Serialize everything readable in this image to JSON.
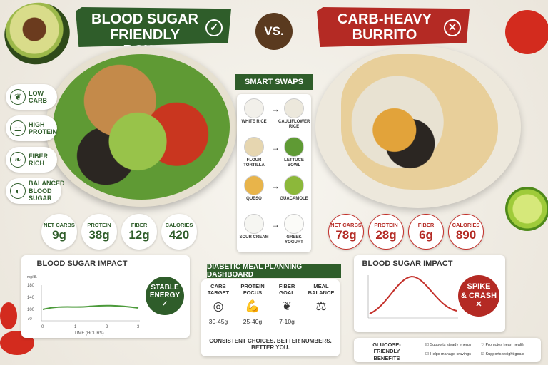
{
  "left_banner": {
    "title_line1": "BLOOD SUGAR",
    "title_line2": "FRIENDLY BOWL",
    "icon": "check-circle-icon"
  },
  "vs_label": "VS.",
  "right_banner": {
    "title_line1": "CARB-HEAVY",
    "title_line2": "BURRITO",
    "icon": "x-circle-icon"
  },
  "attributes": [
    {
      "line1": "LOW",
      "line2": "CARB",
      "icon": "leaf-icon"
    },
    {
      "line1": "HIGH",
      "line2": "PROTEIN",
      "icon": "dumbbell-icon"
    },
    {
      "line1": "FIBER",
      "line2": "RICH",
      "icon": "fiber-icon"
    },
    {
      "line1": "BALANCED",
      "line2": "BLOOD SUGAR",
      "icon": "drop-icon"
    }
  ],
  "bowl_stats": [
    {
      "label": "NET CARBS",
      "value": "9g"
    },
    {
      "label": "PROTEIN",
      "value": "38g"
    },
    {
      "label": "FIBER",
      "value": "12g"
    },
    {
      "label": "CALORIES",
      "value": "420"
    }
  ],
  "burrito_stats": [
    {
      "label": "NET CARBS",
      "value": "78g"
    },
    {
      "label": "PROTEIN",
      "value": "28g"
    },
    {
      "label": "FIBER",
      "value": "6g"
    },
    {
      "label": "CALORIES",
      "value": "890"
    }
  ],
  "smart_swaps": {
    "title": "SMART SWAPS",
    "rows": [
      {
        "from_line1": "WHITE RICE",
        "from_line2": "",
        "to_line1": "CAULIFLOWER",
        "to_line2": "RICE"
      },
      {
        "from_line1": "FLOUR TORTILLA",
        "from_line2": "",
        "to_line1": "LETTUCE",
        "to_line2": "BOWL"
      },
      {
        "from_line1": "QUESO",
        "from_line2": "",
        "to_line1": "GUACAMOLE",
        "to_line2": ""
      },
      {
        "from_line1": "SOUR CREAM",
        "from_line2": "",
        "to_line1": "GREEK",
        "to_line2": "YOGURT"
      }
    ],
    "arrow": "→"
  },
  "left_chart": {
    "title": "BLOOD SUGAR IMPACT",
    "y_unit": "mg/dL",
    "y_ticks": [
      "180",
      "140",
      "100",
      "70"
    ],
    "x_ticks": [
      "0",
      "1",
      "2",
      "3"
    ],
    "x_label": "TIME (HOURS)",
    "badge_line1": "STABLE",
    "badge_line2": "ENERGY",
    "badge_icon": "check-icon",
    "color": "#4b9a3a"
  },
  "right_chart": {
    "title": "BLOOD SUGAR IMPACT",
    "badge_line1": "SPIKE",
    "badge_line2": "& CRASH",
    "badge_icon": "x-icon",
    "color": "#c4302a"
  },
  "dashboard": {
    "title": "DIABETIC MEAL PLANNING DASHBOARD",
    "columns": [
      {
        "line1": "CARB",
        "line2": "TARGET",
        "icon": "target-icon",
        "value": "30-45g"
      },
      {
        "line1": "PROTEIN",
        "line2": "FOCUS",
        "icon": "muscle-icon",
        "value": "25-40g"
      },
      {
        "line1": "FIBER",
        "line2": "GOAL",
        "icon": "sprout-icon",
        "value": "7-10g"
      },
      {
        "line1": "MEAL",
        "line2": "BALANCE",
        "icon": "scale-icon",
        "value": ""
      }
    ],
    "footer": "CONSISTENT CHOICES. BETTER NUMBERS. BETTER YOU."
  },
  "benefits": {
    "title_line1": "GLUCOSE-FRIENDLY",
    "title_line2": "BENEFITS",
    "items": [
      {
        "text": "Supports steady energy",
        "icon": "check-icon"
      },
      {
        "text": "Promotes heart health",
        "icon": "heart-icon"
      },
      {
        "text": "Helps manage cravings",
        "icon": "check-icon"
      },
      {
        "text": "Supports weight goals",
        "icon": "check-icon"
      }
    ]
  },
  "colors": {
    "green": "#2f5d2a",
    "red": "#b42a24",
    "brown": "#5a3a1f"
  }
}
